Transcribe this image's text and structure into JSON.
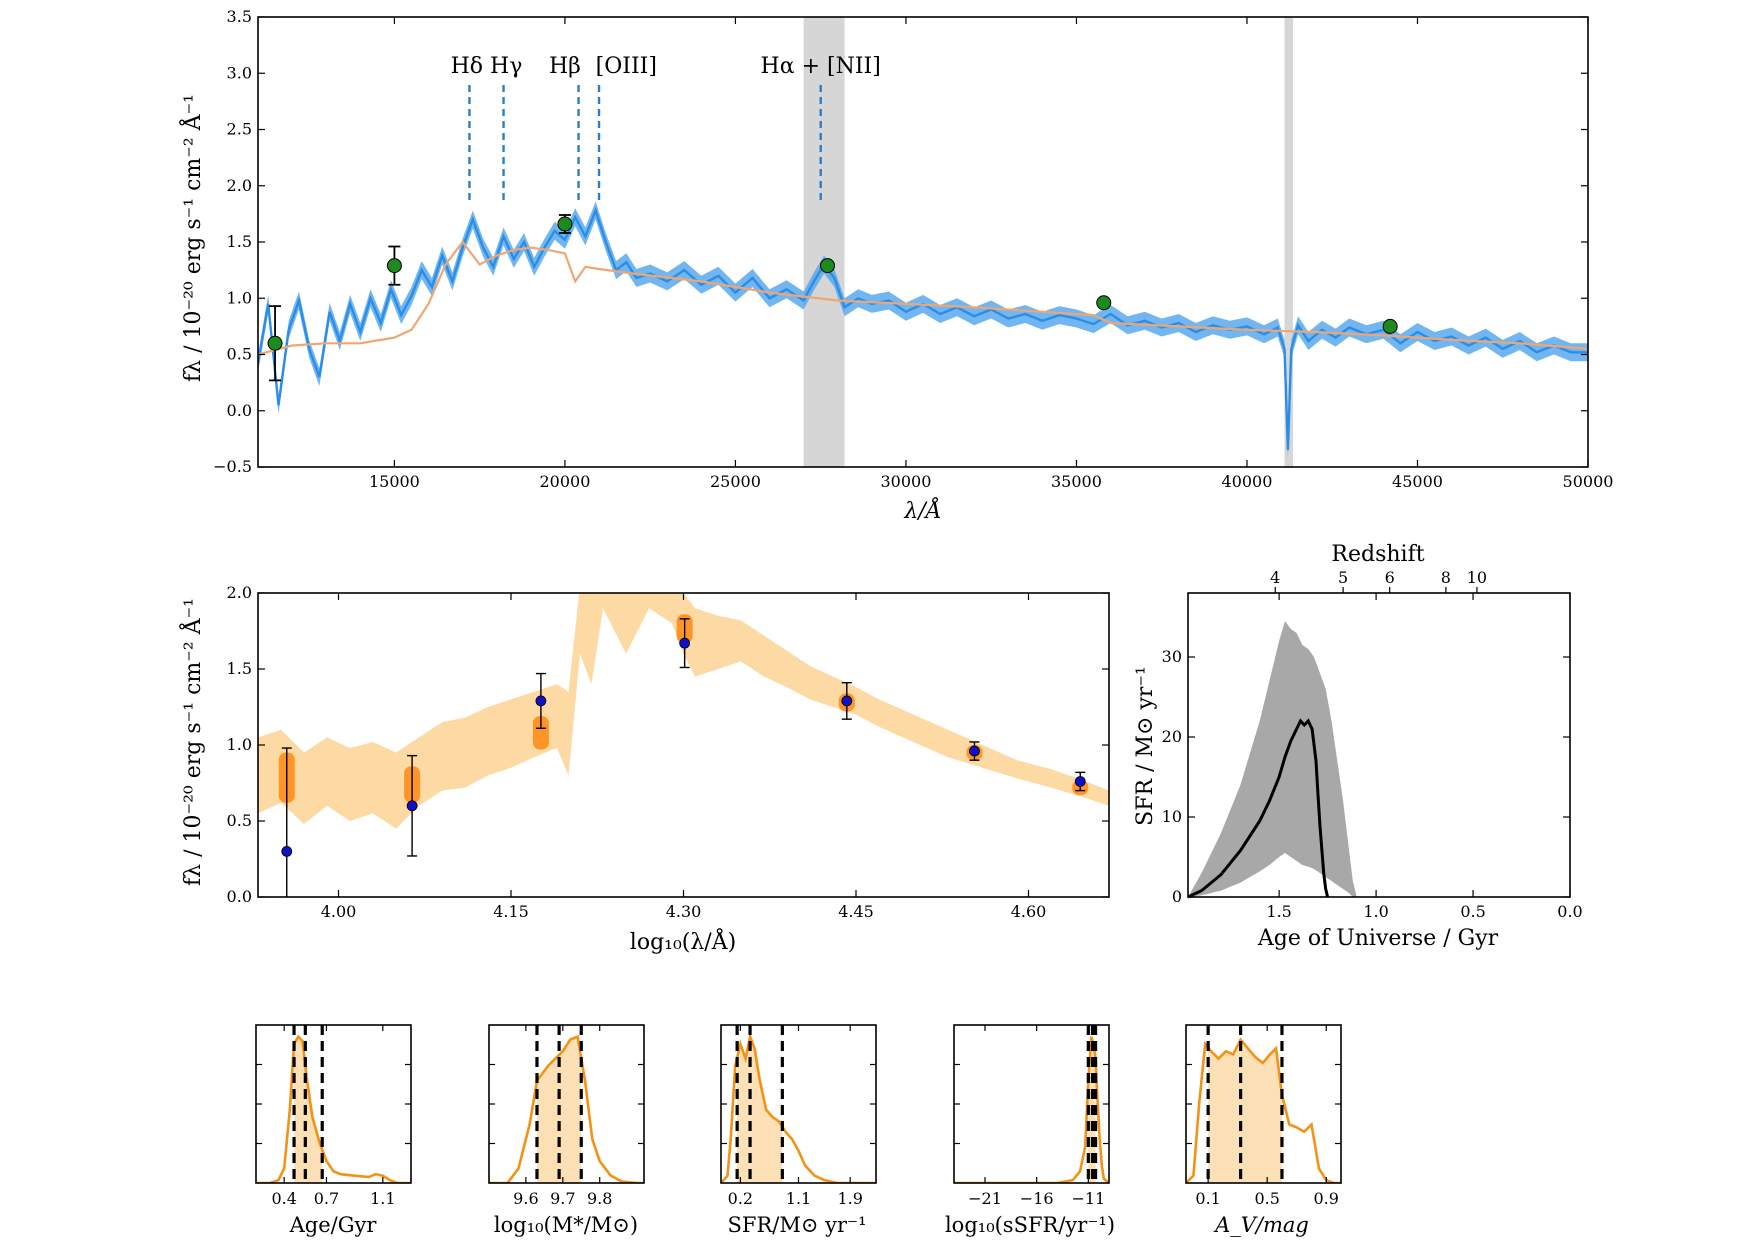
{
  "colors": {
    "spectrum_line": "#2b8ee6",
    "spectrum_band": "#58a9ee",
    "model_line": "#f0a673",
    "photometry_green": "#1d8a1d",
    "line_marker": "#2f7ebf",
    "shade": "#d6d6d6",
    "sed_band": "#fdd9a3",
    "sed_box": "#ff8d1a",
    "obs_blue": "#1010c8",
    "sfh_band": "#a8a8a8",
    "posterior": "#f39216",
    "posterior_fill": "#fde0b6"
  },
  "chart_data": [
    {
      "id": "spectrum",
      "type": "line",
      "xlabel": "λ/Å",
      "ylabel": "fλ / 10⁻²⁰ erg s⁻¹ cm⁻² Å⁻¹",
      "xlim": [
        11000,
        50000
      ],
      "ylim": [
        -0.5,
        3.5
      ],
      "xticks": [
        15000,
        20000,
        25000,
        30000,
        35000,
        40000,
        45000,
        50000
      ],
      "xtick_labels": [
        "15000",
        "20000",
        "25000",
        "30000",
        "35000",
        "40000",
        "45000",
        "50000"
      ],
      "yticks": [
        -0.5,
        0.0,
        0.5,
        1.0,
        1.5,
        2.0,
        2.5,
        3.0,
        3.5
      ],
      "ytick_labels": [
        "−0.5",
        "0.0",
        "0.5",
        "1.0",
        "1.5",
        "2.0",
        "2.5",
        "3.0",
        "3.5"
      ],
      "shaded_regions": [
        [
          27000,
          28200
        ],
        [
          41100,
          41350
        ]
      ],
      "emission_lines": [
        {
          "name": "Hδ",
          "x": 17200
        },
        {
          "name": "Hγ",
          "x": 18200
        },
        {
          "name": "Hβ",
          "x": 20400
        },
        {
          "name": "[OIII]",
          "x": 21000
        },
        {
          "name": "Hα + [NII]",
          "x": 27500
        }
      ],
      "line_label_groups": [
        {
          "text": "Hδ Hγ",
          "x": 17700
        },
        {
          "text": "Hβ",
          "x": 20000
        },
        {
          "text": "[OIII]",
          "x": 21800
        },
        {
          "text": "Hα + [NII]",
          "x": 27500
        }
      ],
      "photometry": [
        {
          "x": 11500,
          "y": 0.6,
          "err": 0.33
        },
        {
          "x": 15000,
          "y": 1.29,
          "err": 0.17
        },
        {
          "x": 20000,
          "y": 1.66,
          "err": 0.08
        },
        {
          "x": 27700,
          "y": 1.29,
          "err": 0.0
        },
        {
          "x": 35800,
          "y": 0.96,
          "err": 0.0
        },
        {
          "x": 44200,
          "y": 0.75,
          "err": 0.0
        }
      ],
      "observed_spectrum": {
        "x": [
          11000,
          11300,
          11600,
          11900,
          12200,
          12500,
          12800,
          13100,
          13400,
          13700,
          14000,
          14300,
          14600,
          14900,
          15200,
          15500,
          15800,
          16100,
          16400,
          16700,
          17000,
          17300,
          17600,
          17900,
          18200,
          18500,
          18800,
          19100,
          19400,
          19700,
          20000,
          20300,
          20600,
          20900,
          21200,
          21500,
          21800,
          22100,
          22500,
          23000,
          23500,
          24000,
          24500,
          25000,
          25500,
          26000,
          26500,
          27000,
          27300,
          27600,
          27900,
          28200,
          28600,
          29000,
          29500,
          30000,
          30500,
          31000,
          31500,
          32000,
          32500,
          33000,
          33500,
          34000,
          34500,
          35000,
          35500,
          36000,
          36500,
          37000,
          37500,
          38000,
          38500,
          39000,
          39500,
          40000,
          40500,
          40900,
          41100,
          41200,
          41300,
          41500,
          41800,
          42200,
          42600,
          43000,
          43500,
          44000,
          44500,
          45000,
          45500,
          46000,
          46500,
          47000,
          47500,
          48000,
          48500,
          49000,
          49500,
          50000
        ],
        "y": [
          0.42,
          0.95,
          0.05,
          0.72,
          0.98,
          0.55,
          0.3,
          0.88,
          0.62,
          0.95,
          0.7,
          1.0,
          0.78,
          1.08,
          0.85,
          1.02,
          1.25,
          1.1,
          1.38,
          1.15,
          1.45,
          1.7,
          1.45,
          1.28,
          1.55,
          1.35,
          1.5,
          1.28,
          1.45,
          1.6,
          1.52,
          1.72,
          1.55,
          1.78,
          1.5,
          1.25,
          1.32,
          1.18,
          1.22,
          1.15,
          1.25,
          1.12,
          1.2,
          1.05,
          1.18,
          1.0,
          1.08,
          0.98,
          1.15,
          1.3,
          1.18,
          0.92,
          1.0,
          0.95,
          0.98,
          0.88,
          0.95,
          0.86,
          0.92,
          0.84,
          0.9,
          0.82,
          0.86,
          0.8,
          0.85,
          0.82,
          0.77,
          0.86,
          0.76,
          0.8,
          0.74,
          0.78,
          0.7,
          0.76,
          0.72,
          0.75,
          0.68,
          0.74,
          0.55,
          -0.35,
          0.55,
          0.76,
          0.62,
          0.72,
          0.65,
          0.74,
          0.68,
          0.72,
          0.6,
          0.7,
          0.62,
          0.66,
          0.58,
          0.65,
          0.55,
          0.62,
          0.52,
          0.58,
          0.52,
          0.52
        ],
        "band_halfwidth": 0.08
      },
      "model_spectrum": {
        "x": [
          11000,
          12000,
          13000,
          14000,
          15000,
          15500,
          16000,
          16500,
          17000,
          17500,
          18000,
          18500,
          19000,
          19500,
          20000,
          20300,
          20600,
          21000,
          22000,
          24000,
          26000,
          28000,
          30000,
          32000,
          34000,
          35500,
          36000,
          38000,
          40000,
          42000,
          44000,
          46000,
          48000,
          50000
        ],
        "y": [
          0.5,
          0.58,
          0.6,
          0.6,
          0.65,
          0.72,
          0.95,
          1.3,
          1.5,
          1.3,
          1.38,
          1.43,
          1.45,
          1.43,
          1.4,
          1.15,
          1.28,
          1.26,
          1.22,
          1.15,
          1.05,
          0.98,
          0.95,
          0.92,
          0.88,
          0.85,
          0.78,
          0.75,
          0.72,
          0.7,
          0.67,
          0.63,
          0.6,
          0.55
        ]
      }
    },
    {
      "id": "sed",
      "type": "line",
      "xlabel": "log₁₀(λ/Å)",
      "ylabel": "fλ / 10⁻²⁰ erg s⁻¹ cm⁻² Å⁻¹",
      "xlim": [
        3.93,
        4.67
      ],
      "ylim": [
        0.0,
        2.0
      ],
      "xticks": [
        4.0,
        4.15,
        4.3,
        4.45,
        4.6
      ],
      "xtick_labels": [
        "4.00",
        "4.15",
        "4.30",
        "4.45",
        "4.60"
      ],
      "yticks": [
        0.0,
        0.5,
        1.0,
        1.5,
        2.0
      ],
      "ytick_labels": [
        "0.0",
        "0.5",
        "1.0",
        "1.5",
        "2.0"
      ],
      "posterior_band": {
        "x": [
          3.93,
          3.95,
          3.97,
          3.99,
          4.01,
          4.03,
          4.05,
          4.07,
          4.09,
          4.11,
          4.13,
          4.15,
          4.17,
          4.19,
          4.2,
          4.21,
          4.22,
          4.23,
          4.25,
          4.27,
          4.29,
          4.3,
          4.31,
          4.33,
          4.35,
          4.37,
          4.39,
          4.41,
          4.43,
          4.45,
          4.47,
          4.5,
          4.53,
          4.56,
          4.59,
          4.62,
          4.65,
          4.67
        ],
        "low": [
          0.55,
          0.62,
          0.48,
          0.6,
          0.5,
          0.55,
          0.45,
          0.6,
          0.7,
          0.72,
          0.8,
          0.85,
          0.92,
          0.98,
          0.8,
          1.6,
          1.4,
          1.9,
          1.6,
          1.9,
          1.8,
          1.6,
          1.45,
          1.5,
          1.55,
          1.45,
          1.38,
          1.3,
          1.25,
          1.2,
          1.12,
          1.02,
          0.92,
          0.85,
          0.78,
          0.72,
          0.65,
          0.6
        ],
        "high": [
          1.05,
          1.1,
          0.95,
          1.05,
          0.98,
          1.02,
          0.95,
          1.05,
          1.15,
          1.18,
          1.25,
          1.3,
          1.35,
          1.4,
          1.35,
          2.05,
          2.05,
          2.05,
          2.05,
          2.05,
          2.05,
          2.0,
          1.9,
          1.85,
          1.82,
          1.72,
          1.62,
          1.52,
          1.45,
          1.38,
          1.3,
          1.2,
          1.1,
          1.0,
          0.9,
          0.84,
          0.76,
          0.7
        ]
      },
      "model_photometry": [
        {
          "x": 3.955,
          "low": 0.62,
          "high": 0.95
        },
        {
          "x": 4.064,
          "low": 0.62,
          "high": 0.86
        },
        {
          "x": 4.176,
          "low": 0.97,
          "high": 1.19
        },
        {
          "x": 4.301,
          "low": 1.67,
          "high": 1.86
        },
        {
          "x": 4.442,
          "low": 1.22,
          "high": 1.34
        },
        {
          "x": 4.553,
          "low": 0.9,
          "high": 1.0
        },
        {
          "x": 4.645,
          "low": 0.67,
          "high": 0.77
        }
      ],
      "observed_photometry": [
        {
          "x": 3.955,
          "y": 0.3,
          "err": 0.68
        },
        {
          "x": 4.064,
          "y": 0.6,
          "err": 0.33
        },
        {
          "x": 4.176,
          "y": 1.29,
          "err": 0.18
        },
        {
          "x": 4.301,
          "y": 1.67,
          "err": 0.16
        },
        {
          "x": 4.442,
          "y": 1.29,
          "err": 0.12
        },
        {
          "x": 4.553,
          "y": 0.96,
          "err": 0.06
        },
        {
          "x": 4.645,
          "y": 0.76,
          "err": 0.06
        }
      ]
    },
    {
      "id": "sfh",
      "type": "area",
      "xlabel": "Age of Universe / Gyr",
      "ylabel": "SFR / M⊙ yr⁻¹",
      "top_xlabel": "Redshift",
      "xlim": [
        1.97,
        0.0
      ],
      "ylim": [
        0,
        38
      ],
      "xticks": [
        1.5,
        1.0,
        0.5,
        0.0
      ],
      "xtick_labels": [
        "1.5",
        "1.0",
        "0.5",
        "0.0"
      ],
      "yticks": [
        0,
        10,
        20,
        30
      ],
      "ytick_labels": [
        "0",
        "10",
        "20",
        "30"
      ],
      "top_ticks": [
        {
          "label": "4",
          "age": 1.52
        },
        {
          "label": "5",
          "age": 1.17
        },
        {
          "label": "6",
          "age": 0.93
        },
        {
          "label": "8",
          "age": 0.64
        },
        {
          "label": "10",
          "age": 0.48
        }
      ],
      "median": {
        "age": [
          1.97,
          1.9,
          1.8,
          1.7,
          1.6,
          1.55,
          1.5,
          1.47,
          1.44,
          1.41,
          1.39,
          1.37,
          1.35,
          1.33,
          1.31,
          1.3,
          1.29,
          1.28,
          1.27,
          1.26,
          1.25
        ],
        "sfr": [
          0.0,
          0.8,
          2.8,
          5.8,
          9.5,
          12.0,
          15.0,
          17.5,
          19.5,
          21.0,
          22.0,
          21.5,
          22.0,
          21.0,
          17.0,
          13.0,
          9.0,
          6.0,
          3.0,
          1.0,
          0.0
        ]
      },
      "band": {
        "age": [
          1.97,
          1.9,
          1.8,
          1.7,
          1.6,
          1.55,
          1.5,
          1.47,
          1.44,
          1.41,
          1.38,
          1.35,
          1.32,
          1.29,
          1.26,
          1.23,
          1.2,
          1.17,
          1.14,
          1.12,
          1.1
        ],
        "low": [
          0.0,
          0.2,
          0.8,
          1.8,
          3.2,
          4.0,
          5.0,
          5.5,
          5.0,
          4.5,
          4.0,
          3.8,
          3.5,
          3.0,
          2.5,
          2.0,
          1.5,
          1.0,
          0.5,
          0.0,
          0.0
        ],
        "high": [
          0.0,
          3.0,
          8.0,
          14.0,
          22.0,
          27.0,
          32.0,
          34.5,
          33.5,
          33.0,
          31.5,
          31.0,
          30.0,
          28.0,
          26.0,
          22.0,
          17.0,
          12.0,
          6.0,
          2.0,
          0.0
        ]
      }
    },
    {
      "id": "post_age",
      "type": "area",
      "xlabel": "Age/Gyr",
      "xlim": [
        0.2,
        1.3
      ],
      "xticks": [
        0.4,
        0.7,
        1.1
      ],
      "xtick_labels": [
        "0.4",
        "0.7",
        "1.1"
      ],
      "quantiles": [
        0.47,
        0.55,
        0.67
      ],
      "x": [
        0.2,
        0.3,
        0.36,
        0.4,
        0.44,
        0.47,
        0.5,
        0.53,
        0.56,
        0.6,
        0.65,
        0.7,
        0.75,
        0.8,
        0.9,
        1.0,
        1.05,
        1.1,
        1.15,
        1.2,
        1.3
      ],
      "y": [
        0.0,
        0.0,
        0.02,
        0.1,
        0.5,
        0.95,
        1.0,
        0.97,
        0.72,
        0.45,
        0.28,
        0.15,
        0.08,
        0.06,
        0.05,
        0.04,
        0.06,
        0.05,
        0.02,
        0.0,
        0.0
      ]
    },
    {
      "id": "post_mass",
      "type": "area",
      "xlabel": "log₁₀(M*/M⊙)",
      "xlim": [
        9.5,
        9.92
      ],
      "xticks": [
        9.6,
        9.7,
        9.8
      ],
      "xtick_labels": [
        "9.6",
        "9.7",
        "9.8"
      ],
      "quantiles": [
        9.63,
        9.69,
        9.75
      ],
      "x": [
        9.5,
        9.55,
        9.58,
        9.61,
        9.63,
        9.66,
        9.68,
        9.7,
        9.72,
        9.74,
        9.76,
        9.78,
        9.8,
        9.83,
        9.86,
        9.9,
        9.92
      ],
      "y": [
        0.0,
        0.0,
        0.1,
        0.4,
        0.7,
        0.8,
        0.85,
        0.9,
        0.98,
        1.0,
        0.7,
        0.3,
        0.15,
        0.05,
        0.01,
        0.0,
        0.0
      ]
    },
    {
      "id": "post_sfr",
      "type": "area",
      "xlabel": "SFR/M⊙ yr⁻¹",
      "xlim": [
        -0.1,
        2.3
      ],
      "xticks": [
        0.2,
        1.1,
        1.9
      ],
      "xtick_labels": [
        "0.2",
        "1.1",
        "1.9"
      ],
      "quantiles": [
        0.15,
        0.35,
        0.85
      ],
      "x": [
        -0.1,
        0.0,
        0.05,
        0.12,
        0.2,
        0.28,
        0.35,
        0.42,
        0.5,
        0.6,
        0.7,
        0.8,
        0.9,
        1.0,
        1.1,
        1.2,
        1.35,
        1.5,
        1.7,
        1.9,
        2.3
      ],
      "y": [
        0.0,
        0.05,
        0.3,
        0.8,
        0.95,
        0.85,
        1.0,
        0.92,
        0.7,
        0.5,
        0.45,
        0.42,
        0.35,
        0.3,
        0.22,
        0.12,
        0.05,
        0.02,
        0.0,
        0.0,
        0.0
      ]
    },
    {
      "id": "post_ssfr",
      "type": "area",
      "xlabel": "log₁₀(sSFR/yr⁻¹)",
      "xlim": [
        -24,
        -9
      ],
      "xticks": [
        -21,
        -16,
        -11
      ],
      "xtick_labels": [
        "−21",
        "−16",
        "−11"
      ],
      "quantiles": [
        -11.0,
        -10.6,
        -10.3
      ],
      "x": [
        -24,
        -14,
        -12.5,
        -11.8,
        -11.3,
        -11.0,
        -10.7,
        -10.5,
        -10.3,
        -10.1,
        -9.9,
        -9.7,
        -9.5,
        -9
      ],
      "y": [
        0.0,
        0.0,
        0.02,
        0.08,
        0.25,
        0.7,
        1.0,
        0.95,
        0.85,
        0.55,
        0.3,
        0.12,
        0.03,
        0.0
      ]
    },
    {
      "id": "post_av",
      "type": "area",
      "xlabel": "A_V/mag",
      "xlim": [
        -0.05,
        1.0
      ],
      "xticks": [
        0.1,
        0.5,
        0.9
      ],
      "xtick_labels": [
        "0.1",
        "0.5",
        "0.9"
      ],
      "quantiles": [
        0.1,
        0.32,
        0.6
      ],
      "x": [
        -0.05,
        0.0,
        0.04,
        0.08,
        0.12,
        0.17,
        0.22,
        0.27,
        0.32,
        0.37,
        0.42,
        0.47,
        0.52,
        0.56,
        0.6,
        0.65,
        0.7,
        0.75,
        0.8,
        0.85,
        0.9,
        0.95,
        1.0
      ],
      "y": [
        0.0,
        0.05,
        0.55,
        0.95,
        0.9,
        0.85,
        0.9,
        0.88,
        0.98,
        0.92,
        0.86,
        0.82,
        0.88,
        0.92,
        0.6,
        0.4,
        0.38,
        0.35,
        0.4,
        0.1,
        0.02,
        0.0,
        0.0
      ]
    }
  ]
}
